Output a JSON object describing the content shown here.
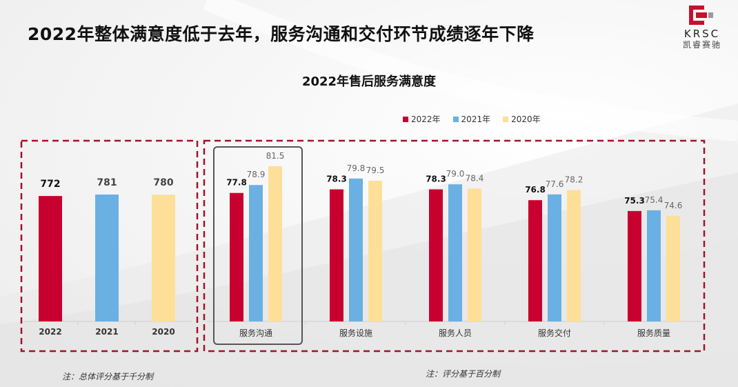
{
  "headline": "2022年整体满意度低于去年，服务沟通和交付环节成绩逐年下降",
  "logo": {
    "text": "KRSC",
    "subtitle": "凯睿赛驰",
    "colors": [
      "#c8102e",
      "#888888"
    ]
  },
  "colors": {
    "2022年": "#c8002f",
    "2021年": "#6ab0e3",
    "2020年": "#fddf98",
    "frame": "#a3102a",
    "highlight": "#555555"
  },
  "chart_data": [
    {
      "type": "bar",
      "title": "",
      "categories": [
        "2022",
        "2021",
        "2020"
      ],
      "values": [
        772,
        781,
        780
      ],
      "value_labels": [
        "772",
        "781",
        "780"
      ],
      "colors": [
        "#c8002f",
        "#6ab0e3",
        "#fddf98"
      ],
      "ylim": [
        0,
        1000
      ],
      "note": "注：总体评分基于千分制"
    },
    {
      "type": "bar",
      "title": "2022年售后服务满意度",
      "categories": [
        "服务沟通",
        "服务设施",
        "服务人员",
        "服务交付",
        "服务质量"
      ],
      "series": [
        {
          "name": "2022年",
          "values": [
            77.8,
            78.3,
            78.3,
            76.8,
            75.3
          ],
          "labels": [
            "77.8",
            "78.3",
            "78.3",
            "76.8",
            "75.3"
          ]
        },
        {
          "name": "2021年",
          "values": [
            78.9,
            79.8,
            79.0,
            77.6,
            75.4
          ],
          "labels": [
            "78.9",
            "79.8",
            "79.0",
            "77.6",
            "75.4"
          ]
        },
        {
          "name": "2020年",
          "values": [
            81.5,
            79.5,
            78.4,
            78.2,
            74.6
          ],
          "labels": [
            "81.5",
            "79.5",
            "78.4",
            "78.2",
            "74.6"
          ]
        }
      ],
      "ylim": [
        60,
        82
      ],
      "legend": "top-center",
      "highlighted_category": "服务沟通",
      "note": "注：评分基于百分制"
    }
  ]
}
